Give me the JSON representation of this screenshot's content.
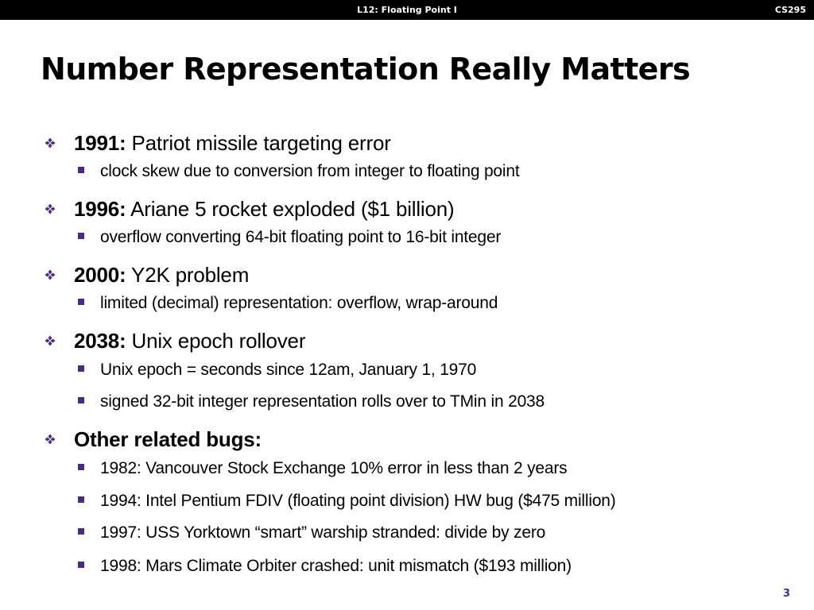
{
  "header": {
    "lecture": "L12:  Floating Point I",
    "course": "CS295"
  },
  "slide": {
    "title": "Number Representation Really Matters",
    "page_number": "3"
  },
  "bullets": [
    {
      "year": "1991:",
      "text": " Patriot missile targeting error",
      "sub": [
        "clock skew due to conversion from integer to floating point"
      ]
    },
    {
      "year": "1996:",
      "text": " Ariane 5 rocket exploded  ($1 billion)",
      "sub": [
        "overflow converting 64-bit floating point to 16-bit integer"
      ]
    },
    {
      "year": "2000:",
      "text": " Y2K problem",
      "sub": [
        "limited (decimal) representation: overflow, wrap-around"
      ]
    },
    {
      "year": "2038:",
      "text": " Unix epoch rollover",
      "sub": [
        "Unix epoch = seconds since 12am, January 1, 1970",
        "signed 32-bit integer representation rolls over to TMin in 2038"
      ]
    },
    {
      "heading": "Other related bugs:",
      "sub": [
        "1982: Vancouver Stock Exchange 10% error in less than 2 years",
        "1994: Intel Pentium FDIV (floating point division) HW bug ($475 million)",
        "1997: USS Yorktown “smart” warship stranded: divide by zero",
        "1998: Mars Climate Orbiter crashed: unit mismatch ($193 million)"
      ]
    }
  ],
  "colors": {
    "header_background": "#000000",
    "header_text": "#ffffff",
    "accent": "#4b2a85"
  },
  "icons": {
    "level1_marker": "four-diamond-bullet-icon",
    "level2_marker": "square-bullet-icon"
  }
}
